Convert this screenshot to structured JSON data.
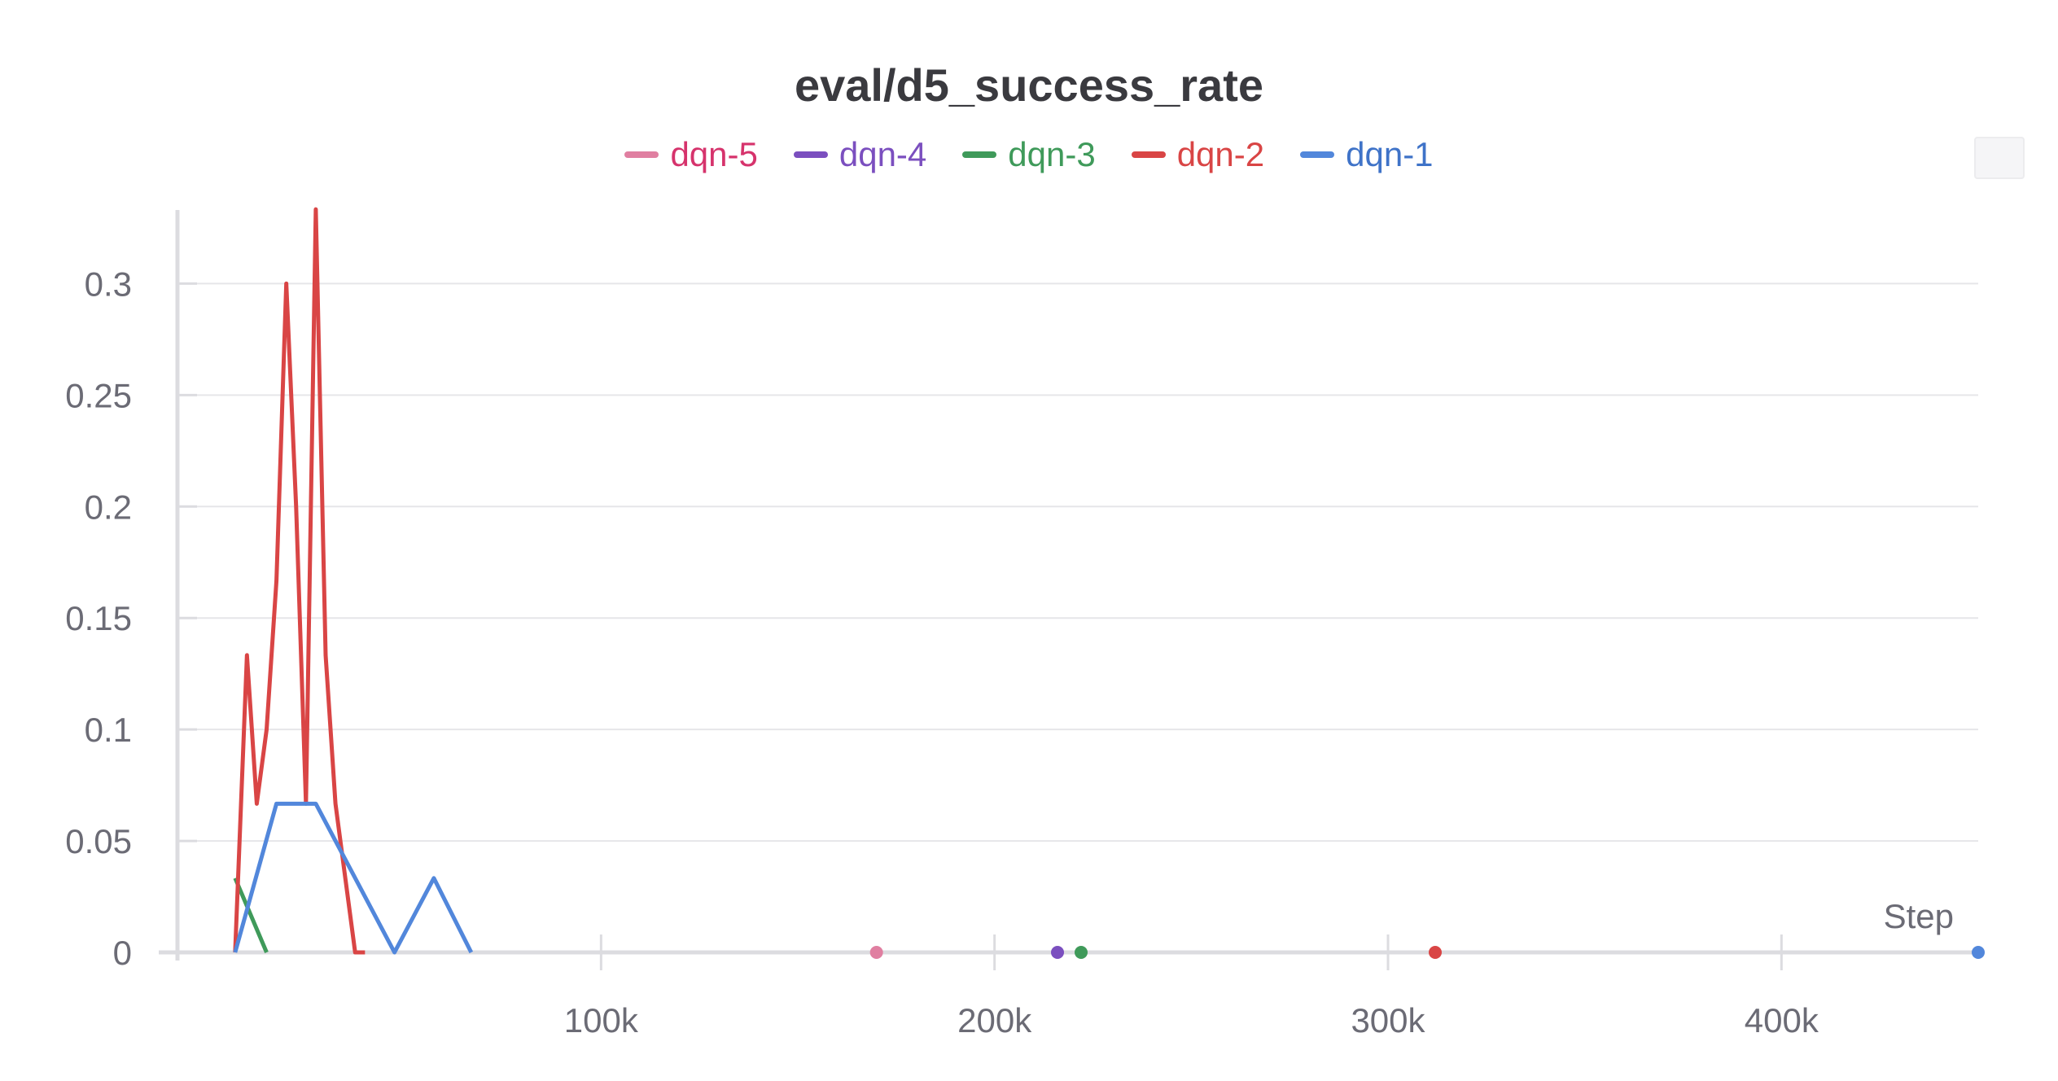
{
  "chart_data": {
    "type": "line",
    "title": "eval/d5_success_rate",
    "xlabel": "Step",
    "ylabel": "",
    "xlim": [
      0,
      450000
    ],
    "ylim": [
      0,
      0.333
    ],
    "xticks": [
      100000,
      200000,
      300000,
      400000
    ],
    "xtick_labels": [
      "100k",
      "200k",
      "300k",
      "400k"
    ],
    "yticks": [
      0,
      0.05,
      0.1,
      0.15,
      0.2,
      0.25,
      0.3
    ],
    "ytick_labels": [
      "0",
      "0.05",
      "0.1",
      "0.15",
      "0.2",
      "0.25",
      "0.3"
    ],
    "grid": true,
    "legend_position": "top-center",
    "series": [
      {
        "name": "dqn-5",
        "color": "#e07fa1",
        "text_color": "#d6336c",
        "x": [
          170000
        ],
        "y": [
          0
        ]
      },
      {
        "name": "dqn-4",
        "color": "#7b4fbf",
        "text_color": "#7b4fbf",
        "x": [
          216000
        ],
        "y": [
          0
        ]
      },
      {
        "name": "dqn-3",
        "color": "#3f9a5a",
        "text_color": "#3f9a5a",
        "x": [
          7000,
          15000,
          222000
        ],
        "y": [
          0.0333,
          0,
          0
        ]
      },
      {
        "name": "dqn-2",
        "color": "#d94545",
        "text_color": "#d94545",
        "x": [
          7000,
          10000,
          12500,
          15000,
          17500,
          20000,
          22500,
          25000,
          27500,
          30000,
          32500,
          35000,
          37500,
          40000,
          312000
        ],
        "y": [
          0,
          0.1333,
          0.0667,
          0.1,
          0.1667,
          0.3,
          0.2,
          0.0667,
          0.3333,
          0.1333,
          0.0667,
          0.0333,
          0,
          0,
          0
        ]
      },
      {
        "name": "dqn-1",
        "color": "#5287db",
        "text_color": "#3f73c8",
        "x": [
          7000,
          17500,
          27500,
          47500,
          57500,
          67000,
          450000
        ],
        "y": [
          0,
          0.0667,
          0.0667,
          0,
          0.0333,
          0,
          0
        ]
      }
    ]
  }
}
